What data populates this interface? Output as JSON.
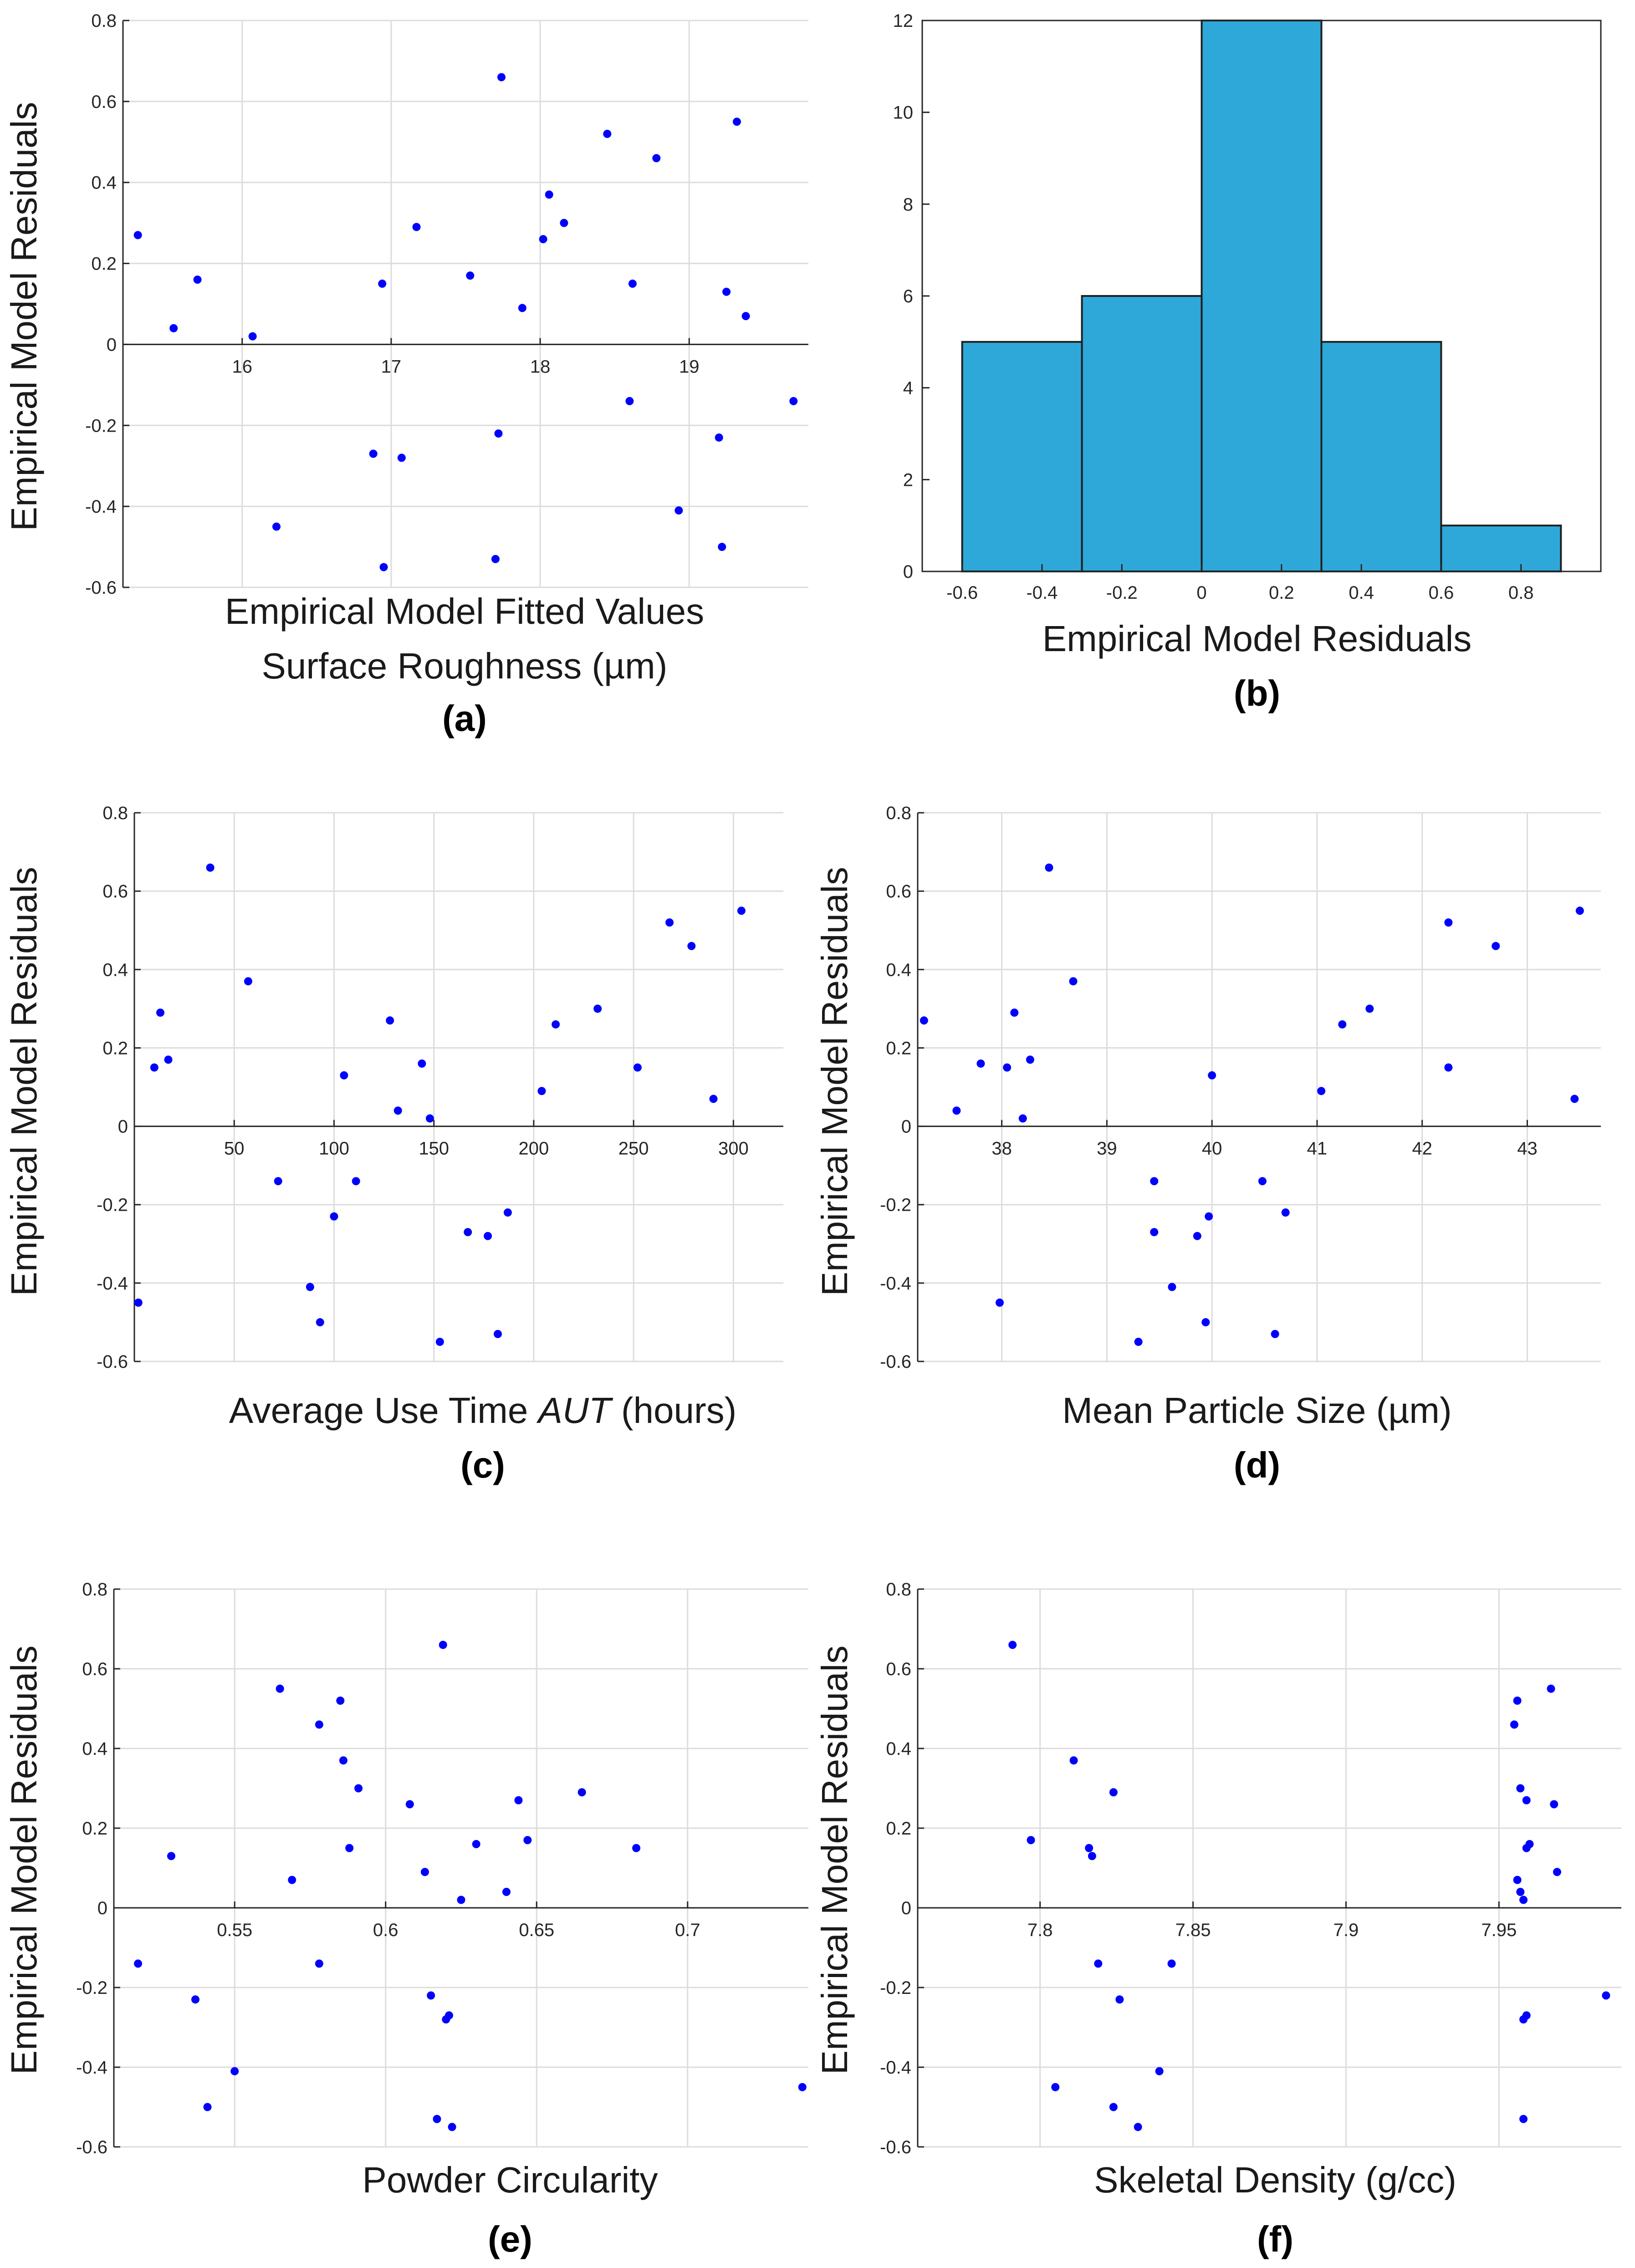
{
  "figure": {
    "colors": {
      "point": "#0000ff",
      "bar": "#2ea8d8",
      "grid": "#dcdcdc",
      "axis": "#262626"
    }
  },
  "chart_data": [
    {
      "id": "a",
      "type": "scatter",
      "panel_label": "(a)",
      "title": "",
      "xlabel": "Empirical Model Fitted Values",
      "xlabel2": "Surface Roughness (µm)",
      "ylabel": "Empirical Model Residuals",
      "xlim": [
        15.2,
        19.8
      ],
      "ylim": [
        -0.6,
        0.8
      ],
      "xticks": [
        16,
        17,
        18,
        19
      ],
      "yticks": [
        -0.6,
        -0.4,
        -0.2,
        0,
        0.2,
        0.4,
        0.6,
        0.8
      ],
      "grid": true,
      "axis_style": "origin",
      "points": [
        [
          15.3,
          0.27
        ],
        [
          15.54,
          0.04
        ],
        [
          15.7,
          0.16
        ],
        [
          16.07,
          0.02
        ],
        [
          16.23,
          -0.45
        ],
        [
          16.88,
          -0.27
        ],
        [
          16.94,
          0.15
        ],
        [
          16.95,
          -0.55
        ],
        [
          17.07,
          -0.28
        ],
        [
          17.17,
          0.29
        ],
        [
          17.53,
          0.17
        ],
        [
          17.7,
          -0.53
        ],
        [
          17.72,
          -0.22
        ],
        [
          17.74,
          0.66
        ],
        [
          17.88,
          0.09
        ],
        [
          18.02,
          0.26
        ],
        [
          18.06,
          0.37
        ],
        [
          18.16,
          0.3
        ],
        [
          18.45,
          0.52
        ],
        [
          18.6,
          -0.14
        ],
        [
          18.62,
          0.15
        ],
        [
          18.78,
          0.46
        ],
        [
          18.93,
          -0.41
        ],
        [
          19.2,
          -0.23
        ],
        [
          19.22,
          -0.5
        ],
        [
          19.25,
          0.13
        ],
        [
          19.32,
          0.55
        ],
        [
          19.38,
          0.07
        ],
        [
          19.7,
          -0.14
        ]
      ]
    },
    {
      "id": "b",
      "type": "bar",
      "panel_label": "(b)",
      "title": "",
      "xlabel": "Empirical Model Residuals",
      "ylabel": "",
      "xlim": [
        -0.7,
        1.0
      ],
      "ylim": [
        0,
        12
      ],
      "xticks": [
        -0.6,
        -0.4,
        -0.2,
        0,
        0.2,
        0.4,
        0.6,
        0.8
      ],
      "yticks": [
        0,
        2,
        4,
        6,
        8,
        10,
        12
      ],
      "grid": false,
      "bin_edges": [
        -0.6,
        -0.3,
        0,
        0.3,
        0.6,
        0.9
      ],
      "values": [
        5,
        6,
        12,
        5,
        1
      ]
    },
    {
      "id": "c",
      "type": "scatter",
      "panel_label": "(c)",
      "title": "",
      "xlabel": "Average Use Time ",
      "xlabel_italic": "AUT",
      "xlabel_suffix": " (hours)",
      "ylabel": "Empirical Model Residuals",
      "xlim": [
        0,
        325
      ],
      "ylim": [
        -0.6,
        0.8
      ],
      "xticks": [
        50,
        100,
        150,
        200,
        250,
        300
      ],
      "yticks": [
        -0.6,
        -0.4,
        -0.2,
        0,
        0.2,
        0.4,
        0.6,
        0.8
      ],
      "grid": true,
      "axis_style": "origin",
      "points": [
        [
          2,
          -0.45
        ],
        [
          10,
          0.15
        ],
        [
          13,
          0.29
        ],
        [
          17,
          0.17
        ],
        [
          38,
          0.66
        ],
        [
          57,
          0.37
        ],
        [
          72,
          -0.14
        ],
        [
          88,
          -0.41
        ],
        [
          93,
          -0.5
        ],
        [
          100,
          -0.23
        ],
        [
          105,
          0.13
        ],
        [
          111,
          -0.14
        ],
        [
          128,
          0.27
        ],
        [
          132,
          0.04
        ],
        [
          144,
          0.16
        ],
        [
          148,
          0.02
        ],
        [
          153,
          -0.55
        ],
        [
          167,
          -0.27
        ],
        [
          177,
          -0.28
        ],
        [
          182,
          -0.53
        ],
        [
          187,
          -0.22
        ],
        [
          204,
          0.09
        ],
        [
          211,
          0.26
        ],
        [
          232,
          0.3
        ],
        [
          252,
          0.15
        ],
        [
          268,
          0.52
        ],
        [
          279,
          0.46
        ],
        [
          290,
          0.07
        ],
        [
          304,
          0.55
        ]
      ]
    },
    {
      "id": "d",
      "type": "scatter",
      "panel_label": "(d)",
      "title": "",
      "xlabel": "Mean Particle Size (µm)",
      "ylabel": "Empirical Model Residuals",
      "xlim": [
        37.2,
        43.7
      ],
      "ylim": [
        -0.6,
        0.8
      ],
      "xticks": [
        38,
        39,
        40,
        41,
        42,
        43
      ],
      "yticks": [
        -0.6,
        -0.4,
        -0.2,
        0,
        0.2,
        0.4,
        0.6,
        0.8
      ],
      "grid": true,
      "axis_style": "origin",
      "points": [
        [
          37.26,
          0.27
        ],
        [
          37.57,
          0.04
        ],
        [
          37.8,
          0.16
        ],
        [
          37.98,
          -0.45
        ],
        [
          38.05,
          0.15
        ],
        [
          38.12,
          0.29
        ],
        [
          38.2,
          0.02
        ],
        [
          38.27,
          0.17
        ],
        [
          38.45,
          0.66
        ],
        [
          38.68,
          0.37
        ],
        [
          39.3,
          -0.55
        ],
        [
          39.45,
          -0.14
        ],
        [
          39.45,
          -0.27
        ],
        [
          39.62,
          -0.41
        ],
        [
          39.86,
          -0.28
        ],
        [
          39.94,
          -0.5
        ],
        [
          39.97,
          -0.23
        ],
        [
          40.0,
          0.13
        ],
        [
          40.48,
          -0.14
        ],
        [
          40.6,
          -0.53
        ],
        [
          40.7,
          -0.22
        ],
        [
          41.04,
          0.09
        ],
        [
          41.24,
          0.26
        ],
        [
          41.5,
          0.3
        ],
        [
          42.25,
          0.52
        ],
        [
          42.25,
          0.15
        ],
        [
          42.7,
          0.46
        ],
        [
          43.45,
          0.07
        ],
        [
          43.5,
          0.55
        ]
      ]
    },
    {
      "id": "e",
      "type": "scatter",
      "panel_label": "(e)",
      "title": "",
      "xlabel": "Powder Circularity",
      "ylabel": "Empirical Model Residuals",
      "xlim": [
        0.51,
        0.74
      ],
      "ylim": [
        -0.6,
        0.8
      ],
      "xticks": [
        0.55,
        0.6,
        0.65,
        0.7
      ],
      "yticks": [
        -0.6,
        -0.4,
        -0.2,
        0,
        0.2,
        0.4,
        0.6,
        0.8
      ],
      "grid": true,
      "axis_style": "origin",
      "points": [
        [
          0.518,
          -0.14
        ],
        [
          0.529,
          0.13
        ],
        [
          0.537,
          -0.23
        ],
        [
          0.541,
          -0.5
        ],
        [
          0.55,
          -0.41
        ],
        [
          0.565,
          0.55
        ],
        [
          0.569,
          0.07
        ],
        [
          0.578,
          0.46
        ],
        [
          0.578,
          -0.14
        ],
        [
          0.585,
          0.52
        ],
        [
          0.586,
          0.37
        ],
        [
          0.588,
          0.15
        ],
        [
          0.591,
          0.3
        ],
        [
          0.608,
          0.26
        ],
        [
          0.613,
          0.09
        ],
        [
          0.615,
          -0.22
        ],
        [
          0.617,
          -0.53
        ],
        [
          0.619,
          0.66
        ],
        [
          0.62,
          -0.28
        ],
        [
          0.621,
          -0.27
        ],
        [
          0.622,
          -0.55
        ],
        [
          0.625,
          0.02
        ],
        [
          0.63,
          0.16
        ],
        [
          0.64,
          0.04
        ],
        [
          0.644,
          0.27
        ],
        [
          0.647,
          0.17
        ],
        [
          0.665,
          0.29
        ],
        [
          0.683,
          0.15
        ],
        [
          0.738,
          -0.45
        ]
      ]
    },
    {
      "id": "f",
      "type": "scatter",
      "panel_label": "(f)",
      "title": "",
      "xlabel": "Skeletal Density (g/cc)",
      "ylabel": "Empirical Model Residuals",
      "xlim": [
        7.76,
        7.99
      ],
      "ylim": [
        -0.6,
        0.8
      ],
      "xticks": [
        7.8,
        7.85,
        7.9,
        7.95
      ],
      "yticks": [
        -0.6,
        -0.4,
        -0.2,
        0,
        0.2,
        0.4,
        0.6,
        0.8
      ],
      "grid": true,
      "axis_style": "origin",
      "points": [
        [
          7.791,
          0.66
        ],
        [
          7.797,
          0.17
        ],
        [
          7.805,
          -0.45
        ],
        [
          7.811,
          0.37
        ],
        [
          7.816,
          0.15
        ],
        [
          7.817,
          0.13
        ],
        [
          7.819,
          -0.14
        ],
        [
          7.824,
          0.29
        ],
        [
          7.824,
          -0.5
        ],
        [
          7.826,
          -0.23
        ],
        [
          7.832,
          -0.55
        ],
        [
          7.839,
          -0.41
        ],
        [
          7.843,
          -0.14
        ],
        [
          7.955,
          0.46
        ],
        [
          7.956,
          0.52
        ],
        [
          7.956,
          0.07
        ],
        [
          7.957,
          0.3
        ],
        [
          7.957,
          0.04
        ],
        [
          7.958,
          -0.28
        ],
        [
          7.958,
          0.02
        ],
        [
          7.958,
          -0.53
        ],
        [
          7.959,
          0.15
        ],
        [
          7.959,
          -0.27
        ],
        [
          7.959,
          0.27
        ],
        [
          7.96,
          0.16
        ],
        [
          7.967,
          0.55
        ],
        [
          7.968,
          0.26
        ],
        [
          7.969,
          0.09
        ],
        [
          7.985,
          -0.22
        ]
      ]
    }
  ]
}
